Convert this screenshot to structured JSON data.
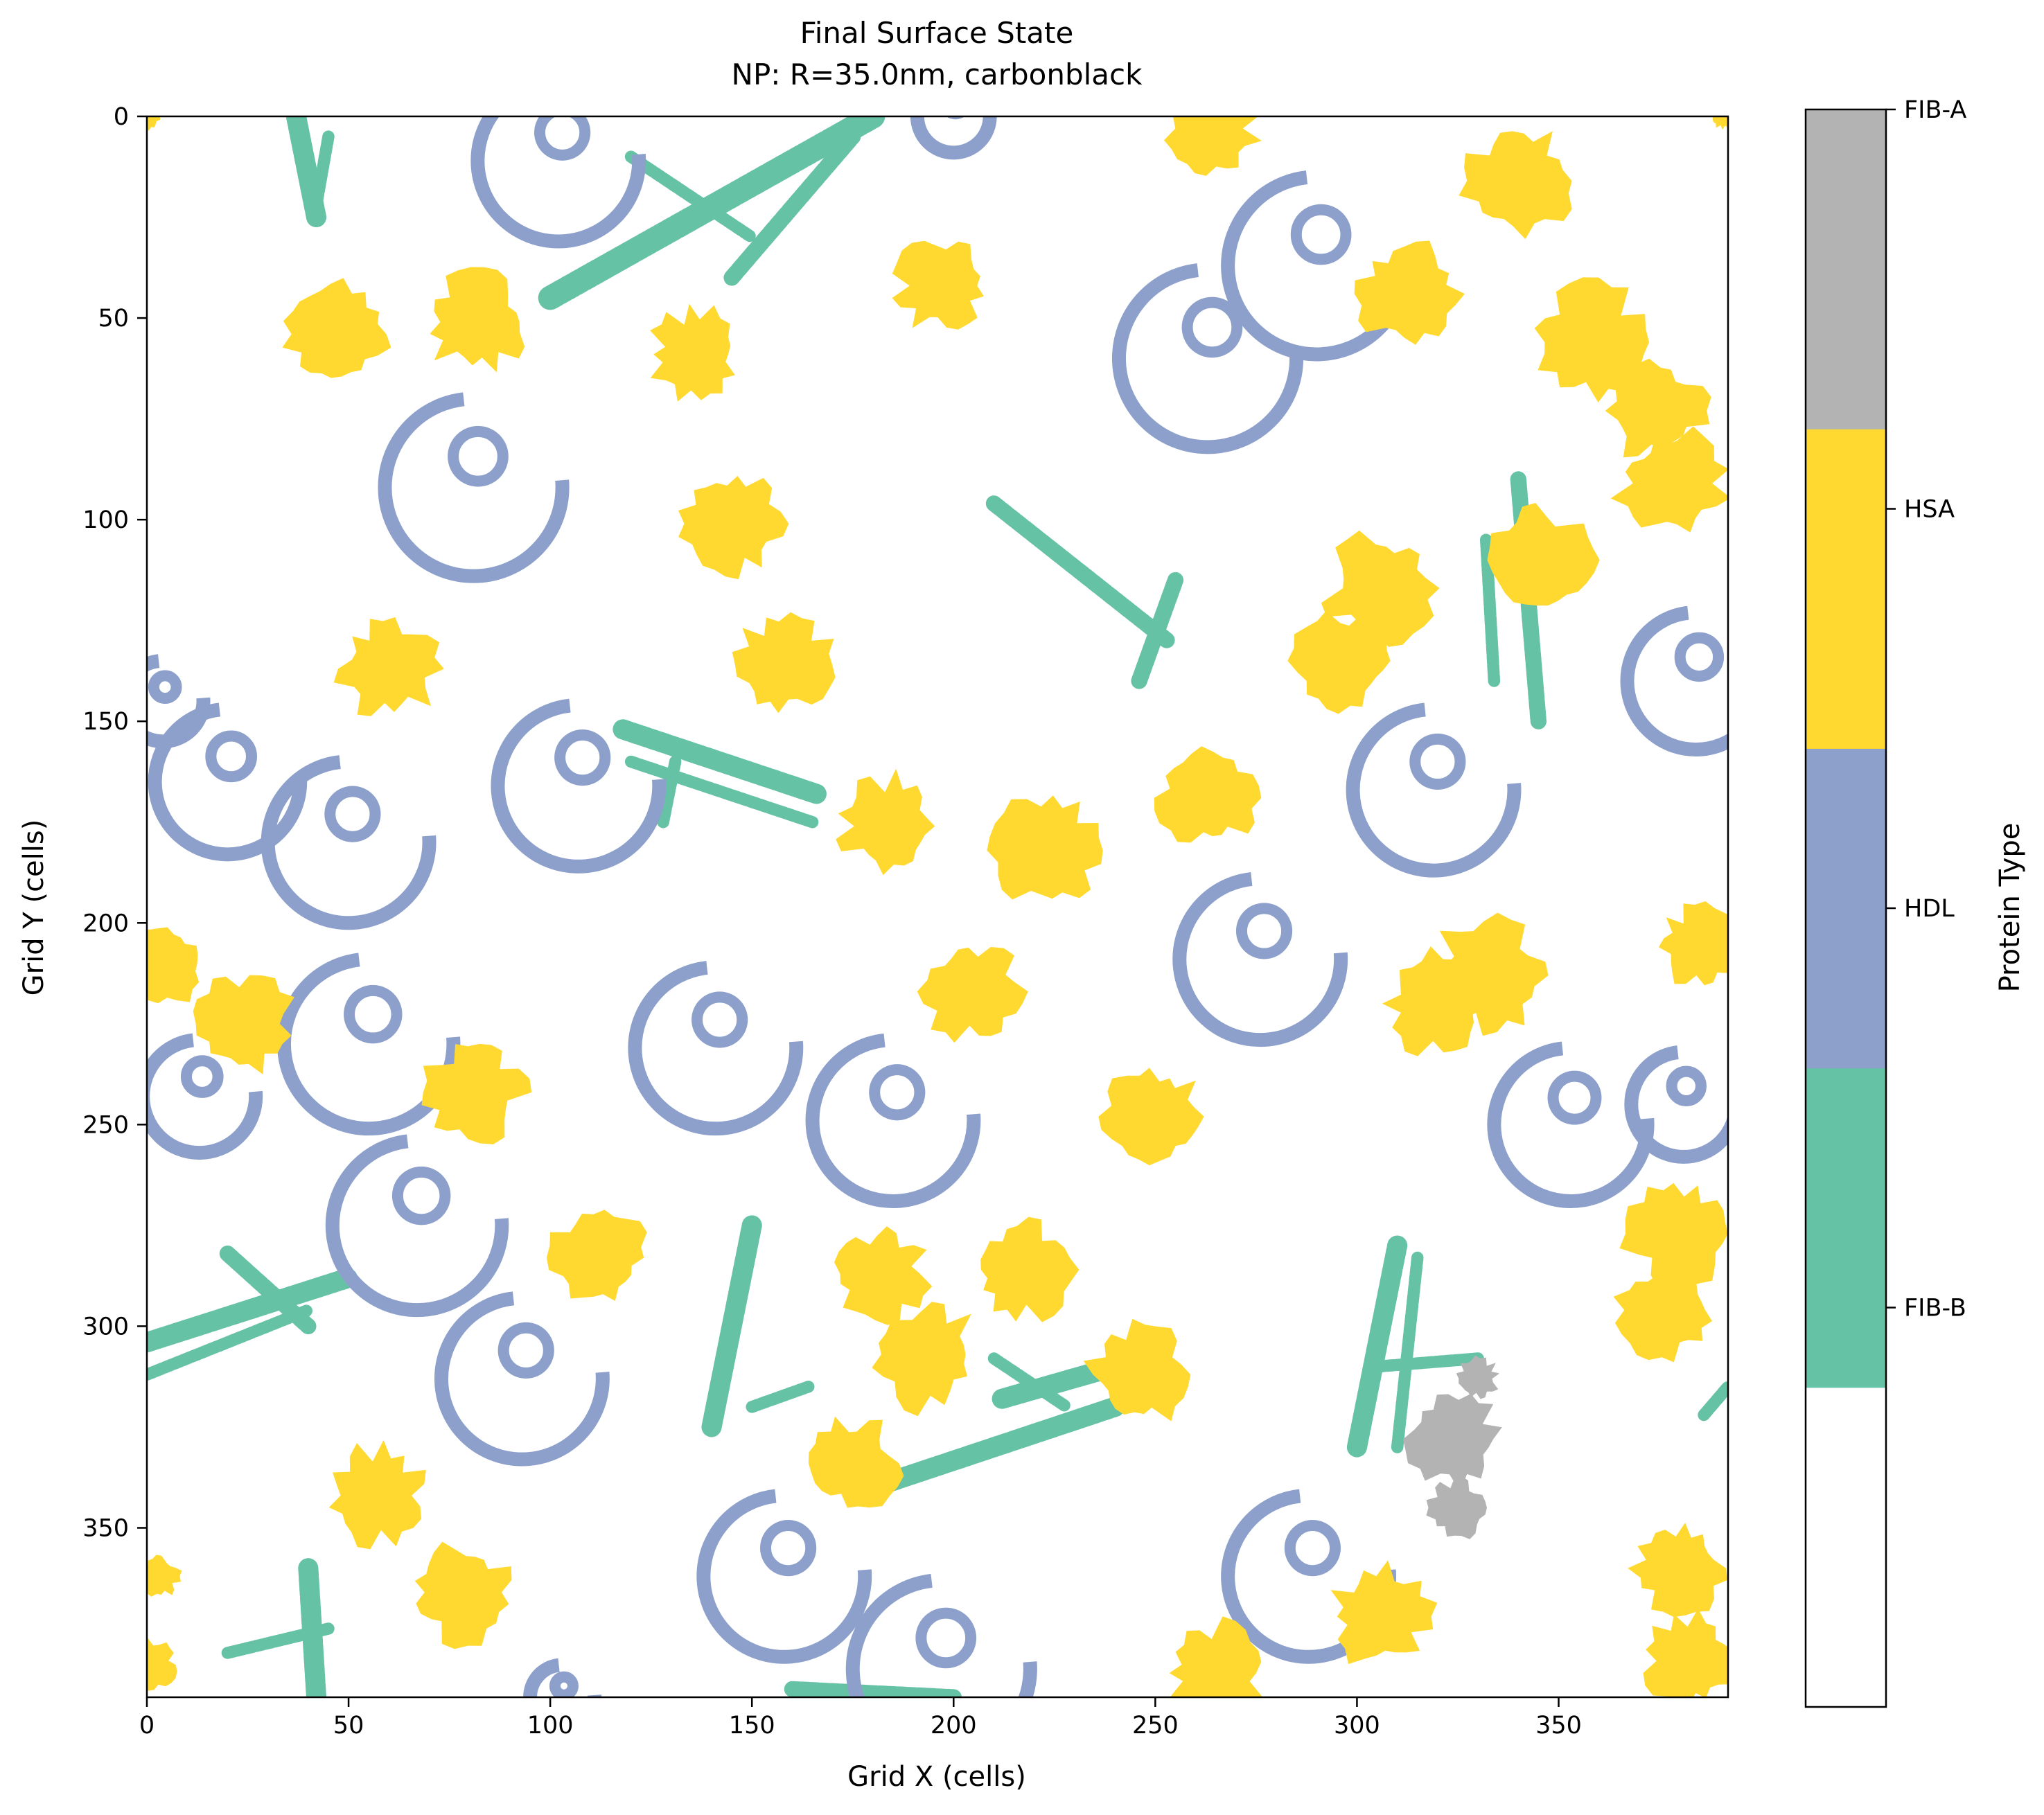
{
  "chart_data": {
    "type": "heatmap",
    "title": "Final Surface State",
    "subtitle": "NP: R=35.0nm, carbonblack",
    "xlabel": "Grid X (cells)",
    "ylabel": "Grid Y (cells)",
    "xlim": [
      0,
      392
    ],
    "ylim": [
      392,
      0
    ],
    "y_inverted": true,
    "xticks": [
      0,
      50,
      100,
      150,
      200,
      250,
      300,
      350
    ],
    "yticks": [
      0,
      50,
      100,
      150,
      200,
      250,
      300,
      350
    ],
    "grid": false,
    "colorbar": {
      "label": "Protein Type",
      "categories": [
        {
          "name": "",
          "color": "#ffffff"
        },
        {
          "name": "FIB-B",
          "color": "#66c2a5"
        },
        {
          "name": "HDL",
          "color": "#8da0cb"
        },
        {
          "name": "HSA",
          "color": "#ffd92f"
        },
        {
          "name": "FIB-A",
          "color": "#b3b3b3"
        }
      ]
    },
    "blobs_HSA": [
      [
        264,
        3,
        11
      ],
      [
        340,
        16,
        13
      ],
      [
        47,
        54,
        12
      ],
      [
        82,
        51,
        12
      ],
      [
        136,
        59,
        11
      ],
      [
        197,
        42,
        11
      ],
      [
        313,
        44,
        12
      ],
      [
        358,
        56,
        14
      ],
      [
        374,
        73,
        12
      ],
      [
        378,
        91,
        13
      ],
      [
        346,
        110,
        12
      ],
      [
        145,
        101,
        12
      ],
      [
        60,
        137,
        12
      ],
      [
        158,
        136,
        12
      ],
      [
        306,
        117,
        13
      ],
      [
        297,
        135,
        12
      ],
      [
        184,
        176,
        12
      ],
      [
        223,
        182,
        13
      ],
      [
        263,
        169,
        12
      ],
      [
        4,
        210,
        10
      ],
      [
        24,
        225,
        12
      ],
      [
        81,
        242,
        12
      ],
      [
        205,
        217,
        12
      ],
      [
        250,
        248,
        12
      ],
      [
        333,
        213,
        14
      ],
      [
        320,
        220,
        12
      ],
      [
        385,
        206,
        10
      ],
      [
        112,
        283,
        12
      ],
      [
        182,
        287,
        11
      ],
      [
        217,
        286,
        12
      ],
      [
        193,
        307,
        13
      ],
      [
        246,
        312,
        12
      ],
      [
        380,
        277,
        13
      ],
      [
        377,
        296,
        12
      ],
      [
        175,
        334,
        11
      ],
      [
        57,
        342,
        12
      ],
      [
        78,
        366,
        12
      ],
      [
        3,
        362,
        5
      ],
      [
        1,
        384,
        6
      ],
      [
        306,
        372,
        12
      ],
      [
        265,
        386,
        12
      ],
      [
        380,
        360,
        11
      ],
      [
        383,
        383,
        11
      ],
      [
        0,
        0,
        3
      ],
      [
        391,
        0,
        3
      ]
    ],
    "rings_HDL": [
      [
        102,
        11,
        20
      ],
      [
        200,
        0,
        9
      ],
      [
        290,
        37,
        22
      ],
      [
        263,
        60,
        22
      ],
      [
        81,
        92,
        22
      ],
      [
        20,
        165,
        18
      ],
      [
        50,
        180,
        20
      ],
      [
        107,
        166,
        20
      ],
      [
        4,
        145,
        10
      ],
      [
        384,
        140,
        17
      ],
      [
        319,
        167,
        20
      ],
      [
        276,
        209,
        20
      ],
      [
        141,
        231,
        20
      ],
      [
        185,
        249,
        20
      ],
      [
        55,
        230,
        21
      ],
      [
        13,
        243,
        14
      ],
      [
        67,
        275,
        21
      ],
      [
        353,
        250,
        19
      ],
      [
        381,
        245,
        13
      ],
      [
        93,
        313,
        20
      ],
      [
        158,
        362,
        20
      ],
      [
        197,
        385,
        22
      ],
      [
        288,
        362,
        20
      ],
      [
        103,
        392,
        8
      ]
    ],
    "rods_FIB_B": [
      [
        37,
        0,
        42,
        25,
        5
      ],
      [
        45,
        5,
        42,
        22,
        3
      ],
      [
        100,
        45,
        180,
        0,
        6
      ],
      [
        145,
        40,
        175,
        5,
        4
      ],
      [
        120,
        10,
        150,
        30,
        3
      ],
      [
        135,
        25,
        160,
        10,
        3
      ],
      [
        210,
        96,
        253,
        130,
        4
      ],
      [
        246,
        140,
        255,
        115,
        4
      ],
      [
        340,
        90,
        345,
        150,
        4
      ],
      [
        332,
        105,
        334,
        140,
        3
      ],
      [
        118,
        152,
        166,
        168,
        5
      ],
      [
        165,
        175,
        120,
        160,
        3
      ],
      [
        131,
        160,
        128,
        175,
        3
      ],
      [
        0,
        304,
        50,
        288,
        5
      ],
      [
        20,
        282,
        40,
        300,
        4
      ],
      [
        0,
        312,
        40,
        296,
        3
      ],
      [
        140,
        325,
        150,
        275,
        5
      ],
      [
        150,
        320,
        164,
        315,
        3
      ],
      [
        180,
        340,
        240,
        320,
        5
      ],
      [
        212,
        318,
        240,
        310,
        5
      ],
      [
        210,
        308,
        228,
        320,
        3
      ],
      [
        300,
        330,
        310,
        280,
        5
      ],
      [
        310,
        330,
        315,
        283,
        3
      ],
      [
        305,
        310,
        330,
        308,
        3
      ],
      [
        40,
        360,
        42,
        392,
        5
      ],
      [
        20,
        381,
        45,
        375,
        3
      ],
      [
        160,
        390,
        200,
        392,
        4
      ],
      [
        386,
        322,
        392,
        315,
        3
      ]
    ],
    "blobs_FIB_A": [
      [
        324,
        328,
        11
      ],
      [
        325,
        345,
        7
      ],
      [
        330,
        313,
        5
      ]
    ]
  }
}
